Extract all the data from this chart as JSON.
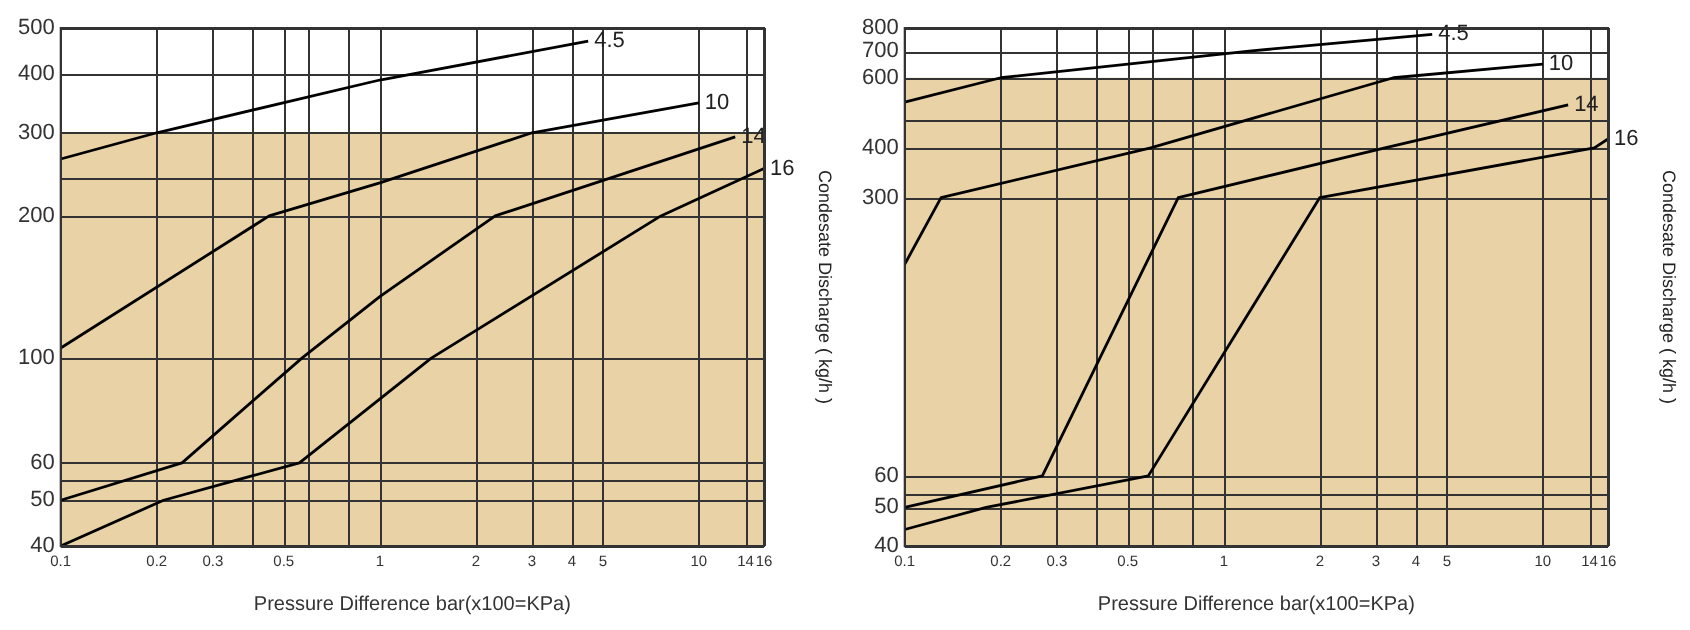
{
  "chart_data": [
    {
      "type": "line",
      "xlabel": "Pressure Difference bar(x100=KPa)",
      "ylabel": "Condesate Discharge ( kg/h )",
      "log": "xy",
      "grid": true,
      "legend": false,
      "marker": "none",
      "line_style": "solid",
      "xlim": [
        0.1,
        16
      ],
      "xticks": [
        0.1,
        0.2,
        0.3,
        {
          "value": 0.4,
          "label": null
        },
        0.5,
        {
          "value": 0.6,
          "label": null
        },
        {
          "value": 0.8,
          "label": null
        },
        1,
        2,
        3,
        4,
        5,
        10,
        14,
        16
      ],
      "ylim": [
        40,
        500
      ],
      "yticks": [
        40,
        50,
        {
          "value": 55,
          "label": null
        },
        60,
        100,
        200,
        {
          "value": 240,
          "label": null
        },
        300,
        400,
        500
      ],
      "bands": [
        {
          "axis": "y",
          "from": 40,
          "to": 300,
          "color": "#e8d2a6"
        }
      ],
      "series": [
        {
          "name": "4.5",
          "color": "#000000",
          "x": [
            0.1,
            0.2,
            1,
            4.5
          ],
          "values": [
            264,
            300,
            388,
            469
          ]
        },
        {
          "name": "10",
          "color": "#000000",
          "x": [
            0.1,
            0.45,
            1,
            3,
            10
          ],
          "values": [
            105,
            200,
            235,
            300,
            347
          ]
        },
        {
          "name": "14",
          "color": "#000000",
          "x": [
            0.1,
            0.24,
            0.57,
            1,
            2.3,
            13
          ],
          "values": [
            50,
            60,
            100,
            135,
            200,
            294
          ]
        },
        {
          "name": "16",
          "color": "#000000",
          "x": [
            0.1,
            0.21,
            0.56,
            1.45,
            7.6,
            16
          ],
          "values": [
            40,
            50,
            60,
            100,
            200,
            252
          ]
        }
      ]
    },
    {
      "type": "line",
      "xlabel": "Pressure Difference bar(x100=KPa)",
      "ylabel": "Condesate Discharge ( kg/h )",
      "log": "xy",
      "grid": true,
      "legend": false,
      "marker": "none",
      "line_style": "solid",
      "xlim": [
        0.1,
        16
      ],
      "xticks": [
        0.1,
        0.2,
        0.3,
        {
          "value": 0.4,
          "label": null
        },
        0.5,
        {
          "value": 0.6,
          "label": null
        },
        {
          "value": 0.8,
          "label": null
        },
        1,
        2,
        3,
        4,
        5,
        10,
        14,
        16
      ],
      "ylim": [
        40,
        800
      ],
      "yticks": [
        40,
        50,
        {
          "value": 54,
          "label": null
        },
        60,
        300,
        400,
        {
          "value": 470,
          "label": null
        },
        600,
        700,
        800
      ],
      "bands": [
        {
          "axis": "y",
          "from": 40,
          "to": 600,
          "color": "#e8d2a6"
        }
      ],
      "series": [
        {
          "name": "4.5",
          "color": "#000000",
          "x": [
            0.1,
            0.2,
            1.2,
            4.5
          ],
          "values": [
            521,
            600,
            700,
            771
          ]
        },
        {
          "name": "10",
          "color": "#000000",
          "x": [
            0.1,
            0.13,
            0.59,
            3.4,
            10
          ],
          "values": [
            204,
            300,
            400,
            600,
            649
          ]
        },
        {
          "name": "14",
          "color": "#000000",
          "x": [
            0.1,
            0.27,
            0.72,
            3.2,
            12
          ],
          "values": [
            50,
            60,
            300,
            400,
            513
          ]
        },
        {
          "name": "16",
          "color": "#000000",
          "x": [
            0.1,
            0.18,
            0.58,
            2,
            14.5,
            16
          ],
          "values": [
            44,
            50,
            60,
            300,
            400,
            421
          ]
        }
      ]
    }
  ]
}
